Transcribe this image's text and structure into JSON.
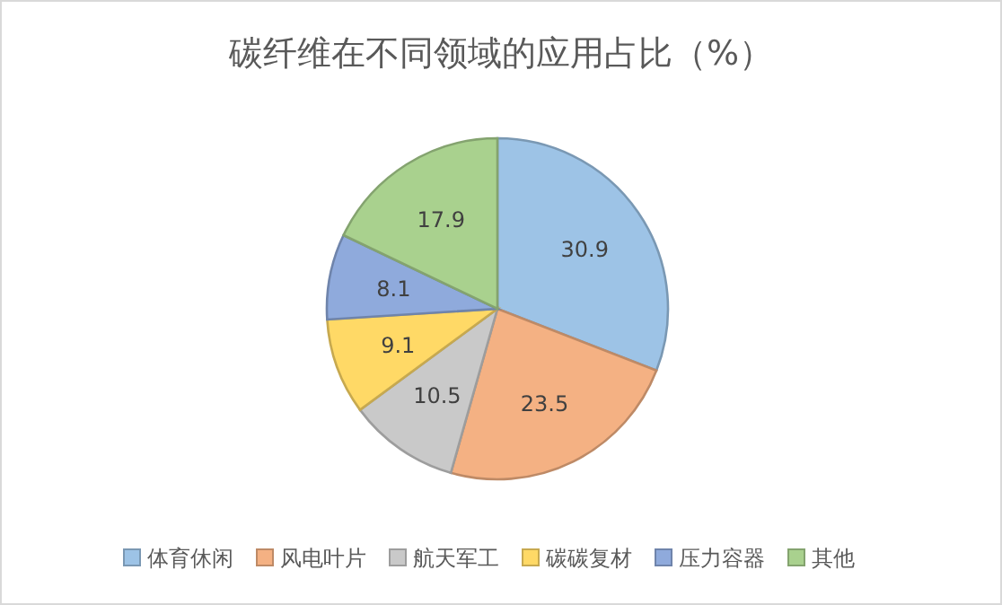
{
  "chart_data": {
    "type": "pie",
    "title": "碳纤维在不同领域的应用占比（%）",
    "categories": [
      "体育休闲",
      "风电叶片",
      "航天军工",
      "碳碳复材",
      "压力容器",
      "其他"
    ],
    "values": [
      30.9,
      23.5,
      10.5,
      9.1,
      8.1,
      17.9
    ],
    "colors": [
      "#9dc3e6",
      "#f4b183",
      "#c9c9c9",
      "#ffd966",
      "#8faadc",
      "#a9d18e"
    ],
    "data_labels": true,
    "legend": "bottom"
  }
}
